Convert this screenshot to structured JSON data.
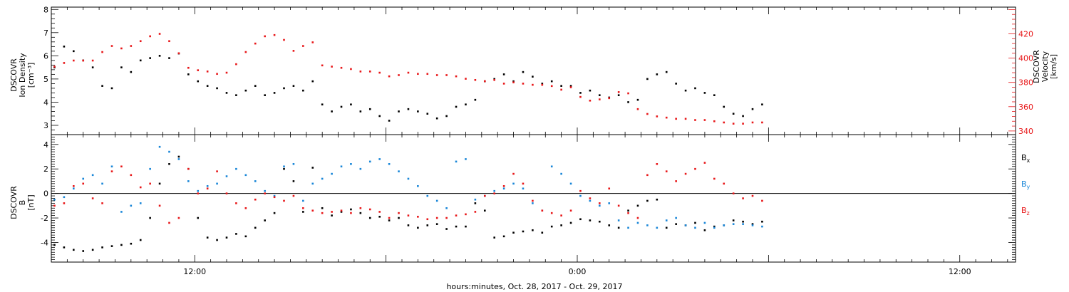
{
  "xlabel": "hours:minutes, Oct. 28, 2017 - Oct. 29, 2017",
  "colors": {
    "black": "#000000",
    "red": "#e8181a",
    "blue": "#1a87d8"
  },
  "chart_data": [
    {
      "type": "scatter",
      "panel": "top",
      "ylabel_left": [
        "DSCOVR",
        "Ion Density",
        "[cm⁻³]"
      ],
      "ylabel_right": [
        "DSCOVR",
        "Velocity",
        "[km/s]"
      ],
      "x_range_hours": [
        7.5,
        37.75
      ],
      "x_ticks": [
        {
          "hour": 12,
          "label": "12:00"
        },
        {
          "hour": 24,
          "label": "0:00"
        },
        {
          "hour": 36,
          "label": "12:00"
        }
      ],
      "ylim_left": [
        2.6,
        8.1
      ],
      "yticks_left": [
        3,
        4,
        5,
        6,
        7,
        8
      ],
      "ylim_right": [
        337,
        442
      ],
      "yticks_right": [
        340,
        360,
        380,
        400,
        420
      ],
      "series": [
        {
          "axis": "left",
          "color": "black",
          "x": [
            7.6,
            7.9,
            8.2,
            8.5,
            8.8,
            9.1,
            9.4,
            9.7,
            10.0,
            10.3,
            10.6,
            10.9,
            11.2,
            11.5,
            11.8,
            12.1,
            12.4,
            12.7,
            13.0,
            13.3,
            13.6,
            13.9,
            14.2,
            14.5,
            14.8,
            15.1,
            15.4,
            15.7,
            16.0,
            16.3,
            16.6,
            16.9,
            17.2,
            17.5,
            17.8,
            18.1,
            18.4,
            18.7,
            19.0,
            19.3,
            19.6,
            19.9,
            20.2,
            20.5,
            20.8,
            21.1,
            21.4,
            21.7,
            22.0,
            22.3,
            22.6,
            22.9,
            23.2,
            23.5,
            23.8,
            24.1,
            24.4,
            24.7,
            25.0,
            25.3,
            25.6,
            25.9,
            26.2,
            26.5,
            26.8,
            27.1,
            27.4,
            27.7,
            28.0,
            28.3,
            28.6,
            28.9,
            29.2,
            29.5,
            29.8
          ],
          "y": [
            5.5,
            6.4,
            6.2,
            5.8,
            5.5,
            4.7,
            4.6,
            5.5,
            5.3,
            5.8,
            5.9,
            6.0,
            5.9,
            6.1,
            5.2,
            4.9,
            4.7,
            4.6,
            4.4,
            4.3,
            4.5,
            4.7,
            4.3,
            4.4,
            4.6,
            4.7,
            4.5,
            4.9,
            3.9,
            3.6,
            3.8,
            3.9,
            3.6,
            3.7,
            3.4,
            3.2,
            3.6,
            3.7,
            3.6,
            3.5,
            3.3,
            3.4,
            3.8,
            3.9,
            4.1,
            4.9,
            5.0,
            5.2,
            4.9,
            5.3,
            5.1,
            4.8,
            4.9,
            4.7,
            4.7,
            4.4,
            4.5,
            4.3,
            4.2,
            4.3,
            4.0,
            4.1,
            5.0,
            5.2,
            5.3,
            4.8,
            4.5,
            4.6,
            4.4,
            4.3,
            3.8,
            3.5,
            3.4,
            3.7,
            3.9
          ]
        },
        {
          "axis": "right",
          "color": "red",
          "x": [
            7.6,
            7.9,
            8.2,
            8.5,
            8.8,
            9.1,
            9.4,
            9.7,
            10.0,
            10.3,
            10.6,
            10.9,
            11.2,
            11.5,
            11.8,
            12.1,
            12.4,
            12.7,
            13.0,
            13.3,
            13.6,
            13.9,
            14.2,
            14.5,
            14.8,
            15.1,
            15.4,
            15.7,
            16.0,
            16.3,
            16.6,
            16.9,
            17.2,
            17.5,
            17.8,
            18.1,
            18.4,
            18.7,
            19.0,
            19.3,
            19.6,
            19.9,
            20.2,
            20.5,
            20.8,
            21.1,
            21.4,
            21.7,
            22.0,
            22.3,
            22.6,
            22.9,
            23.2,
            23.5,
            23.8,
            24.1,
            24.4,
            24.7,
            25.0,
            25.3,
            25.6,
            25.9,
            26.2,
            26.5,
            26.8,
            27.1,
            27.4,
            27.7,
            28.0,
            28.3,
            28.6,
            28.9,
            29.2,
            29.5,
            29.8
          ],
          "y": [
            393,
            396,
            398,
            398,
            398,
            405,
            410,
            408,
            410,
            414,
            418,
            420,
            414,
            404,
            392,
            390,
            389,
            387,
            388,
            395,
            405,
            412,
            418,
            419,
            415,
            406,
            410,
            413,
            394,
            393,
            392,
            391,
            389,
            389,
            388,
            385,
            386,
            388,
            387,
            387,
            386,
            386,
            385,
            383,
            382,
            381,
            382,
            379,
            380,
            379,
            378,
            378,
            377,
            374,
            376,
            368,
            365,
            366,
            367,
            372,
            371,
            358,
            354,
            352,
            351,
            350,
            350,
            349,
            349,
            348,
            347,
            346,
            346,
            347,
            347
          ]
        }
      ]
    },
    {
      "type": "scatter",
      "panel": "bottom",
      "ylabel_left": [
        "DSCOVR",
        "B",
        "[nT]"
      ],
      "x_range_hours": [
        7.5,
        37.75
      ],
      "x_ticks": [
        {
          "hour": 12,
          "label": "12:00"
        },
        {
          "hour": 24,
          "label": "0:00"
        },
        {
          "hour": 36,
          "label": "12:00"
        }
      ],
      "ylim": [
        -5.6,
        4.8
      ],
      "yticks": [
        -4,
        -2,
        0,
        2,
        4
      ],
      "legend": [
        {
          "base": "B",
          "sub": "x",
          "color": "black"
        },
        {
          "base": "B",
          "sub": "y",
          "color": "blue"
        },
        {
          "base": "B",
          "sub": "z",
          "color": "red"
        }
      ],
      "series": [
        {
          "name": "Bx",
          "color": "black",
          "x": [
            7.6,
            7.9,
            8.2,
            8.5,
            8.8,
            9.1,
            9.4,
            9.7,
            10.0,
            10.3,
            10.6,
            10.9,
            11.2,
            11.5,
            11.8,
            12.1,
            12.4,
            12.7,
            13.0,
            13.3,
            13.6,
            13.9,
            14.2,
            14.5,
            14.8,
            15.1,
            15.4,
            15.7,
            16.0,
            16.3,
            16.6,
            16.9,
            17.2,
            17.5,
            17.8,
            18.1,
            18.4,
            18.7,
            19.0,
            19.3,
            19.6,
            19.9,
            20.2,
            20.5,
            20.8,
            21.1,
            21.4,
            21.7,
            22.0,
            22.3,
            22.6,
            22.9,
            23.2,
            23.5,
            23.8,
            24.1,
            24.4,
            24.7,
            25.0,
            25.3,
            25.6,
            25.9,
            26.2,
            26.5,
            26.8,
            27.1,
            27.4,
            27.7,
            28.0,
            28.3,
            28.6,
            28.9,
            29.2,
            29.5,
            29.8
          ],
          "y": [
            -4.2,
            -4.4,
            -4.6,
            -4.7,
            -4.6,
            -4.4,
            -4.3,
            -4.2,
            -4.1,
            -3.8,
            -2.0,
            0.8,
            2.4,
            3.0,
            2.0,
            -2.0,
            -3.6,
            -3.8,
            -3.6,
            -3.3,
            -3.5,
            -2.8,
            -2.2,
            -1.6,
            2.0,
            1.0,
            -1.5,
            2.1,
            -1.2,
            -1.8,
            -1.5,
            -1.3,
            -1.6,
            -2.0,
            -1.9,
            -2.2,
            -2.0,
            -2.6,
            -2.8,
            -2.6,
            -2.5,
            -2.9,
            -2.7,
            -2.7,
            -0.8,
            -1.4,
            -3.6,
            -3.5,
            -3.2,
            -3.1,
            -3.0,
            -3.2,
            -2.7,
            -2.6,
            -2.4,
            -2.1,
            -2.2,
            -2.3,
            -2.6,
            -2.8,
            -1.4,
            -1.0,
            -0.6,
            -0.5,
            -2.8,
            -2.5,
            -2.6,
            -2.4,
            -3.0,
            -2.7,
            -2.6,
            -2.2,
            -2.3,
            -2.5,
            -2.3
          ]
        },
        {
          "name": "By",
          "color": "blue",
          "x": [
            7.6,
            7.9,
            8.2,
            8.5,
            8.8,
            9.1,
            9.4,
            9.7,
            10.0,
            10.3,
            10.6,
            10.9,
            11.2,
            11.5,
            11.8,
            12.1,
            12.4,
            12.7,
            13.0,
            13.3,
            13.6,
            13.9,
            14.2,
            14.5,
            14.8,
            15.1,
            15.4,
            15.7,
            16.0,
            16.3,
            16.6,
            16.9,
            17.2,
            17.5,
            17.8,
            18.1,
            18.4,
            18.7,
            19.0,
            19.3,
            19.6,
            19.9,
            20.2,
            20.5,
            20.8,
            21.1,
            21.4,
            21.7,
            22.0,
            22.3,
            22.6,
            22.9,
            23.2,
            23.5,
            23.8,
            24.1,
            24.4,
            24.7,
            25.0,
            25.3,
            25.6,
            25.9,
            26.2,
            26.5,
            26.8,
            27.1,
            27.4,
            27.7,
            28.0,
            28.3,
            28.6,
            28.9,
            29.2,
            29.5,
            29.8
          ],
          "y": [
            -0.5,
            -0.3,
            0.4,
            1.2,
            1.5,
            0.8,
            2.2,
            -1.5,
            -1.0,
            -0.8,
            2.0,
            3.8,
            3.4,
            2.8,
            1.0,
            0.2,
            0.6,
            0.8,
            1.4,
            2.0,
            1.5,
            1.0,
            0.2,
            -0.2,
            2.2,
            2.4,
            -0.6,
            0.8,
            1.2,
            1.6,
            2.2,
            2.4,
            2.0,
            2.6,
            2.8,
            2.4,
            1.8,
            1.2,
            0.6,
            -0.2,
            -0.6,
            -1.2,
            2.6,
            2.8,
            -0.5,
            -0.2,
            0.2,
            0.4,
            0.8,
            0.4,
            -0.8,
            -1.4,
            2.2,
            1.6,
            0.8,
            -0.2,
            -0.6,
            -1.0,
            -0.8,
            -2.2,
            -2.8,
            -2.4,
            -2.6,
            -2.8,
            -2.2,
            -2.0,
            -2.6,
            -2.8,
            -2.4,
            -2.8,
            -2.6,
            -2.5,
            -2.5,
            -2.6,
            -2.7
          ]
        },
        {
          "name": "Bz",
          "color": "red",
          "x": [
            7.6,
            7.9,
            8.2,
            8.5,
            8.8,
            9.1,
            9.4,
            9.7,
            10.0,
            10.3,
            10.6,
            10.9,
            11.2,
            11.5,
            11.8,
            12.1,
            12.4,
            12.7,
            13.0,
            13.3,
            13.6,
            13.9,
            14.2,
            14.5,
            14.8,
            15.1,
            15.4,
            15.7,
            16.0,
            16.3,
            16.6,
            16.9,
            17.2,
            17.5,
            17.8,
            18.1,
            18.4,
            18.7,
            19.0,
            19.3,
            19.6,
            19.9,
            20.2,
            20.5,
            20.8,
            21.1,
            21.4,
            21.7,
            22.0,
            22.3,
            22.6,
            22.9,
            23.2,
            23.5,
            23.8,
            24.1,
            24.4,
            24.7,
            25.0,
            25.3,
            25.6,
            25.9,
            26.2,
            26.5,
            26.8,
            27.1,
            27.4,
            27.7,
            28.0,
            28.3,
            28.6,
            28.9,
            29.2,
            29.5,
            29.8
          ],
          "y": [
            -1.0,
            -0.8,
            0.6,
            0.8,
            -0.4,
            -0.8,
            1.8,
            2.2,
            1.5,
            0.5,
            0.8,
            -1.0,
            -2.4,
            -2.0,
            2.0,
            0.0,
            0.4,
            1.8,
            0.0,
            -0.8,
            -1.2,
            -0.5,
            0.0,
            -0.3,
            -0.6,
            -0.2,
            -1.2,
            -1.4,
            -1.6,
            -1.5,
            -1.4,
            -1.6,
            -1.2,
            -1.3,
            -1.5,
            -2.0,
            -1.6,
            -1.8,
            -1.9,
            -2.1,
            -2.0,
            -2.0,
            -1.8,
            -1.7,
            -1.5,
            -0.2,
            0.0,
            0.6,
            1.6,
            0.8,
            -0.6,
            -1.4,
            -1.6,
            -1.8,
            -1.4,
            0.2,
            -0.4,
            -0.8,
            0.4,
            -1.0,
            -1.6,
            -2.0,
            1.5,
            2.4,
            1.8,
            1.0,
            1.6,
            2.0,
            2.5,
            1.2,
            0.8,
            0.0,
            -0.4,
            -0.2,
            -0.6
          ]
        }
      ]
    }
  ]
}
